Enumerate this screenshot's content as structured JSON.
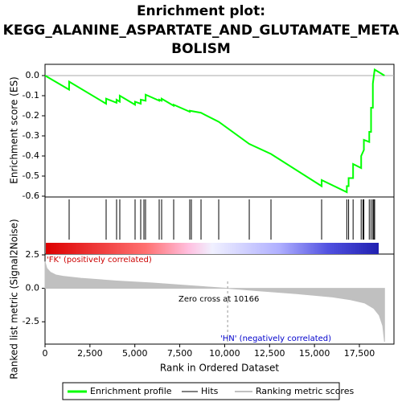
{
  "chart_data": {
    "type": "line",
    "title": [
      "Enrichment plot:",
      "KEGG_ALANINE_ASPARTATE_AND_GLUTAMATE_META",
      "BOLISM"
    ],
    "x_label": "Rank in Ordered Dataset",
    "y_label": "Enrichment score (ES)",
    "y2_label": "Ranked list metric (Signal2Noise)",
    "annotations": [
      "'FK' (positively correlated)",
      "'HN' (negatively correlated)",
      "Zero cross at 10166"
    ],
    "zero_cross": 10166,
    "xlim": [
      0,
      19425
    ],
    "xticks": [
      0,
      {
        "value": 2500,
        "label": "2,500"
      },
      {
        "value": 5000,
        "label": "5,000"
      },
      {
        "value": 7500,
        "label": "7,500"
      },
      {
        "value": 10000,
        "label": "10,000"
      },
      {
        "value": 12500,
        "label": "12,500"
      },
      {
        "value": 15000,
        "label": "15,000"
      },
      {
        "value": 17500,
        "label": "17,500"
      }
    ],
    "ylim": [
      -0.604,
      0.056
    ],
    "yticks": [
      {
        "value": 0,
        "label": "0.0"
      },
      -0.1,
      -0.2,
      -0.3,
      -0.4,
      -0.5,
      -0.6
    ],
    "y2lim": [
      -4.17,
      2.56
    ],
    "y2ticks": [
      2.5,
      {
        "value": 0,
        "label": "0.0"
      },
      -2.5
    ],
    "series": [
      {
        "name": "Enrichment profile",
        "color": "#00ff00",
        "x": [
          0,
          1340,
          1340,
          3400,
          3400,
          3980,
          3980,
          4160,
          4160,
          5010,
          5010,
          5330,
          5330,
          5600,
          5600,
          6360,
          6360,
          6490,
          6490,
          7160,
          7160,
          8060,
          8060,
          8680,
          9670,
          11370,
          12580,
          15400,
          15400,
          16800,
          16800,
          16900,
          16900,
          17150,
          17150,
          17600,
          17600,
          17750,
          17750,
          18050,
          18050,
          18150,
          18150,
          18250,
          18250,
          18350,
          18900
        ],
        "values": [
          0,
          -0.07,
          -0.03,
          -0.14,
          -0.115,
          -0.135,
          -0.12,
          -0.13,
          -0.1,
          -0.145,
          -0.13,
          -0.14,
          -0.12,
          -0.125,
          -0.095,
          -0.125,
          -0.12,
          -0.125,
          -0.115,
          -0.15,
          -0.145,
          -0.18,
          -0.175,
          -0.185,
          -0.23,
          -0.34,
          -0.39,
          -0.55,
          -0.52,
          -0.58,
          -0.55,
          -0.55,
          -0.51,
          -0.51,
          -0.44,
          -0.46,
          -0.4,
          -0.37,
          -0.32,
          -0.33,
          -0.28,
          -0.28,
          -0.16,
          -0.16,
          -0.04,
          0.03,
          0.0
        ]
      },
      {
        "name": "Hits",
        "color": "#000000",
        "x": [
          1343,
          3402,
          3984,
          4163,
          5013,
          5327,
          5506,
          5595,
          6356,
          6491,
          7162,
          8057,
          8147,
          8684,
          9669,
          11370,
          12578,
          15398,
          16800,
          16900,
          17150,
          17600,
          17700,
          17750,
          18050,
          18150,
          18250,
          18300,
          18350
        ]
      },
      {
        "name": "Ranking metric scores",
        "color": "#c0c0c0",
        "x": [
          0,
          100,
          300,
          600,
          1000,
          2000,
          4000,
          6000,
          8000,
          10166,
          12000,
          14000,
          16000,
          17000,
          17800,
          18300,
          18600,
          18800,
          18900
        ],
        "values": [
          2.0,
          1.5,
          1.2,
          1.0,
          0.9,
          0.75,
          0.55,
          0.4,
          0.2,
          0,
          -0.2,
          -0.4,
          -0.65,
          -0.85,
          -1.1,
          -1.5,
          -2.0,
          -2.8,
          -4.0
        ]
      }
    ],
    "grid": false
  }
}
